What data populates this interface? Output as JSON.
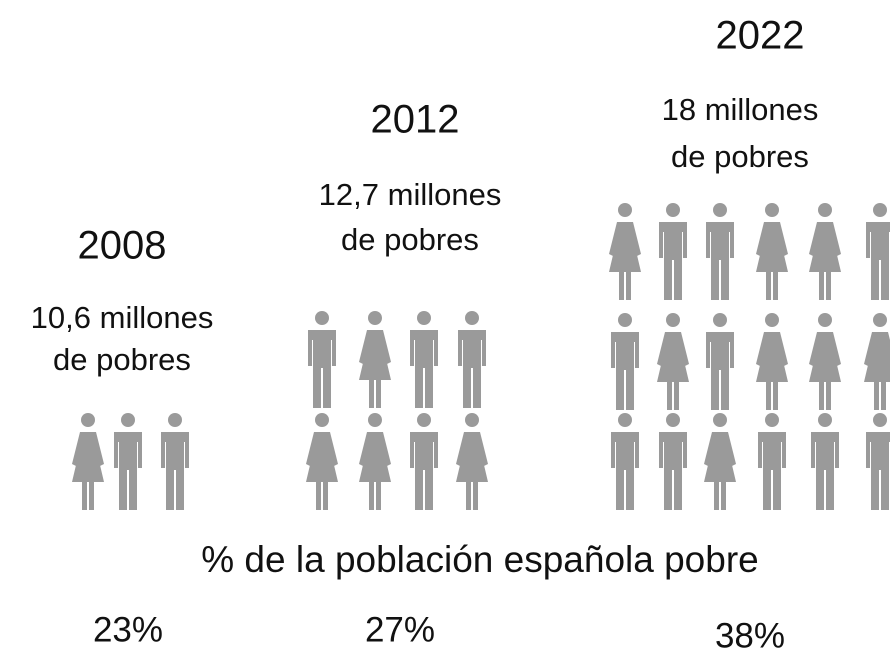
{
  "subtitle": "% de la población española pobre",
  "groups": [
    {
      "year": "2008",
      "caption": [
        "10,6 millones",
        "de pobres"
      ],
      "percent": "23%"
    },
    {
      "year": "2012",
      "caption": [
        "12,7 millones",
        "de pobres"
      ],
      "percent": "27%"
    },
    {
      "year": "2022",
      "caption": [
        "18 millones",
        "de pobres"
      ],
      "percent": "38%"
    }
  ]
}
